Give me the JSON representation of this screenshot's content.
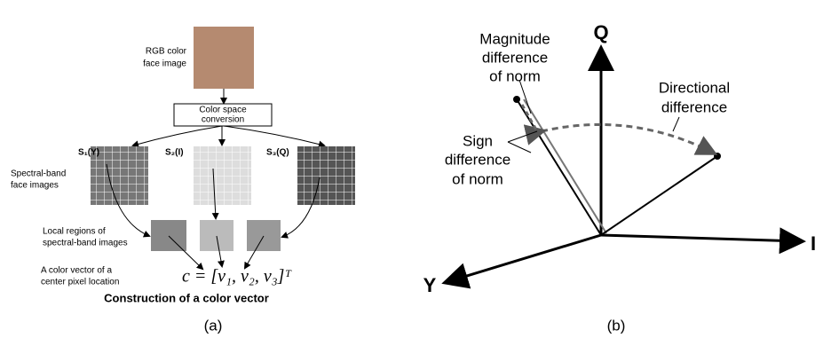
{
  "panel_a": {
    "face_label": [
      "RGB color",
      "face image"
    ],
    "conversion_box": [
      "Color space",
      "conversion"
    ],
    "band_labels": [
      "S₁(Y)",
      "S₂(I)",
      "S₃(Q)"
    ],
    "band_images_label": [
      "Spectral-band",
      "face images"
    ],
    "local_regions_label": [
      "Local regions of",
      "spectral-band images"
    ],
    "color_vector_label": [
      "A color vector of a",
      "center pixel location"
    ],
    "formula": "c = [v₁, v₂, v₃]ᵀ",
    "caption": "Construction of a color vector",
    "panel_label": "(a)"
  },
  "panel_b": {
    "axes": [
      "Q",
      "I",
      "Y"
    ],
    "magnitude_label": [
      "Magnitude",
      "difference",
      "of norm"
    ],
    "directional_label": [
      "Directional",
      "difference"
    ],
    "sign_label": [
      "Sign",
      "difference",
      "of norm"
    ],
    "panel_label": "(b)"
  }
}
